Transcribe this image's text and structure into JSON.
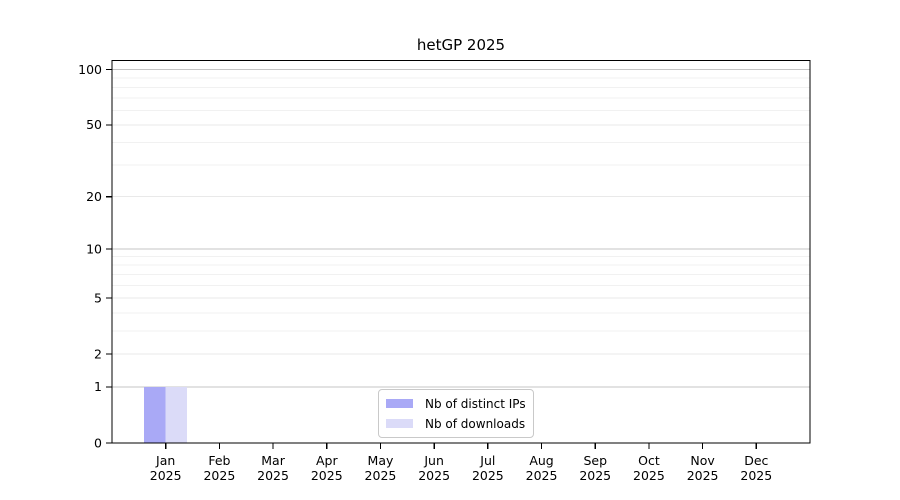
{
  "chart_data": {
    "type": "bar",
    "title": "hetGP 2025",
    "categories": [
      "Jan 2025",
      "Feb 2025",
      "Mar 2025",
      "Apr 2025",
      "May 2025",
      "Jun 2025",
      "Jul 2025",
      "Aug 2025",
      "Sep 2025",
      "Oct 2025",
      "Nov 2025",
      "Dec 2025"
    ],
    "series": [
      {
        "name": "Nb of distinct IPs",
        "color": "#a9a9f6",
        "values": [
          1,
          0,
          0,
          0,
          0,
          0,
          0,
          0,
          0,
          0,
          0,
          0
        ]
      },
      {
        "name": "Nb of downloads",
        "color": "#dbdbf8",
        "values": [
          1,
          0,
          0,
          0,
          0,
          0,
          0,
          0,
          0,
          0,
          0,
          0
        ]
      }
    ],
    "xlabel": "",
    "ylabel": "",
    "yscale": "log1p",
    "ylim": [
      0,
      112
    ],
    "y_ticks": [
      0,
      1,
      2,
      5,
      10,
      20,
      50,
      100
    ],
    "y_minor_gridlines": [
      3,
      4,
      6,
      7,
      8,
      9,
      30,
      40,
      60,
      70,
      80,
      90
    ],
    "grid": "horizontal",
    "legend_position": "lower center",
    "colors": {
      "background": "#ffffff",
      "axis": "#000000",
      "text": "#000000",
      "grid_decade": "#c4c4c4",
      "grid_labeled": "#e9e9e9",
      "grid_minor": "#f1f1f1",
      "legend_border": "#c9c9c9"
    }
  }
}
